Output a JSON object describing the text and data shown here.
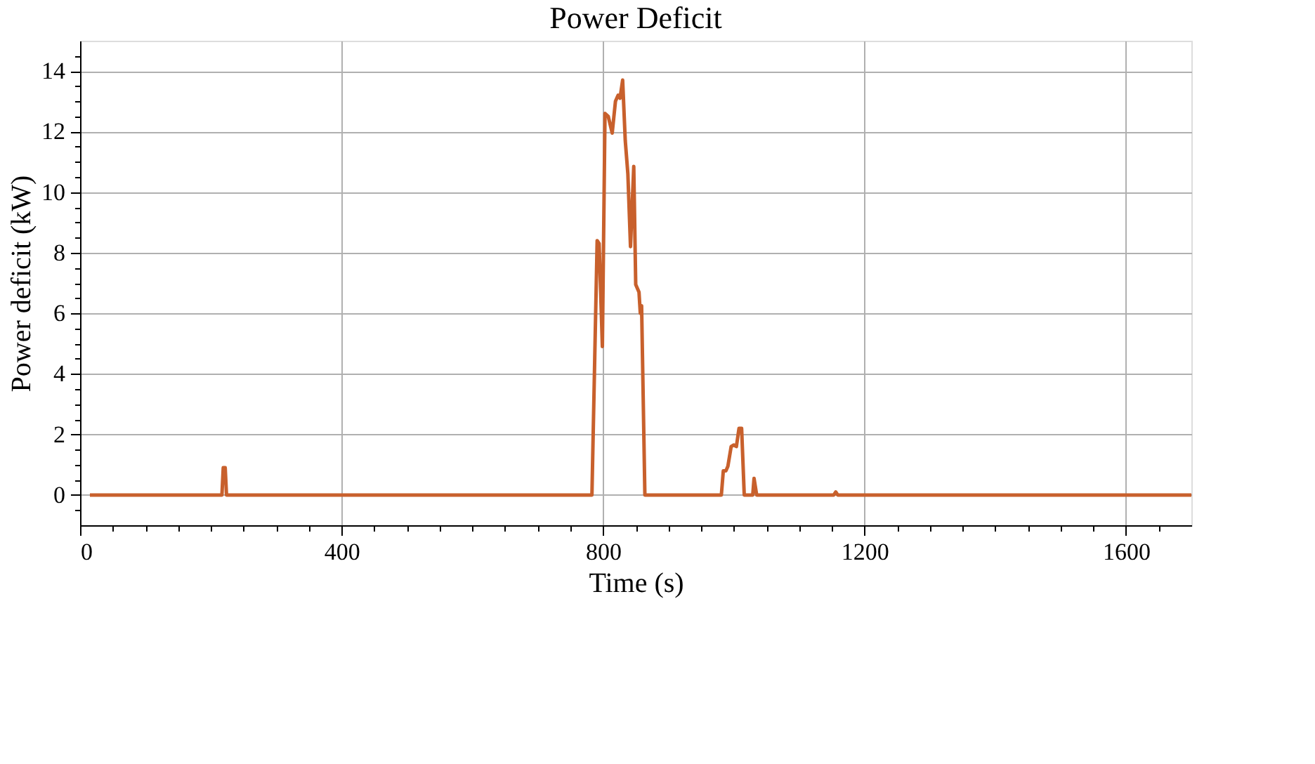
{
  "chart_data": {
    "type": "line",
    "title": "Power Deficit",
    "xlabel": "Time (s)",
    "ylabel": "Power deficit (kW)",
    "x": [
      15,
      217,
      219,
      222,
      224,
      783,
      791,
      794,
      799,
      803,
      808,
      814,
      819,
      823,
      826,
      830,
      834,
      838,
      842,
      847,
      850,
      855,
      857,
      859,
      864,
      981,
      984,
      988,
      991,
      996,
      1000,
      1004,
      1008,
      1012,
      1016,
      1029,
      1031,
      1035,
      1153,
      1156,
      1159,
      1700
    ],
    "series": [
      {
        "color": "#c8602c",
        "values": [
          0,
          0,
          0.9,
          0.9,
          0,
          0,
          8.4,
          8.3,
          4.9,
          12.6,
          12.5,
          11.95,
          13.0,
          13.2,
          13.1,
          13.7,
          11.7,
          10.6,
          8.2,
          10.85,
          6.95,
          6.7,
          6.0,
          6.25,
          0,
          0,
          0.8,
          0.8,
          0.95,
          1.6,
          1.65,
          1.6,
          2.2,
          2.2,
          0,
          0,
          0.55,
          0,
          0,
          0.1,
          0,
          0
        ]
      }
    ],
    "xlim": [
      0,
      1700
    ],
    "ylim": [
      -1,
      15
    ],
    "xticks": [
      0,
      {
        "value": 50,
        "label": null
      },
      {
        "value": 100,
        "label": null
      },
      {
        "value": 150,
        "label": null
      },
      {
        "value": 200,
        "label": null
      },
      {
        "value": 250,
        "label": null
      },
      {
        "value": 300,
        "label": null
      },
      {
        "value": 350,
        "label": null
      },
      400,
      {
        "value": 450,
        "label": null
      },
      {
        "value": 500,
        "label": null
      },
      {
        "value": 550,
        "label": null
      },
      {
        "value": 600,
        "label": null
      },
      {
        "value": 650,
        "label": null
      },
      {
        "value": 700,
        "label": null
      },
      {
        "value": 750,
        "label": null
      },
      800,
      {
        "value": 850,
        "label": null
      },
      {
        "value": 900,
        "label": null
      },
      {
        "value": 950,
        "label": null
      },
      {
        "value": 1000,
        "label": null
      },
      {
        "value": 1050,
        "label": null
      },
      {
        "value": 1100,
        "label": null
      },
      {
        "value": 1150,
        "label": null
      },
      1200,
      {
        "value": 1250,
        "label": null
      },
      {
        "value": 1300,
        "label": null
      },
      {
        "value": 1350,
        "label": null
      },
      {
        "value": 1400,
        "label": null
      },
      {
        "value": 1450,
        "label": null
      },
      {
        "value": 1500,
        "label": null
      },
      {
        "value": 1550,
        "label": null
      },
      1600,
      {
        "value": 1650,
        "label": null
      }
    ],
    "yticks": [
      {
        "value": -0.5,
        "label": null
      },
      0,
      {
        "value": 0.5,
        "label": null
      },
      {
        "value": 1,
        "label": null
      },
      {
        "value": 1.5,
        "label": null
      },
      2,
      {
        "value": 2.5,
        "label": null
      },
      {
        "value": 3,
        "label": null
      },
      {
        "value": 3.5,
        "label": null
      },
      4,
      {
        "value": 4.5,
        "label": null
      },
      {
        "value": 5,
        "label": null
      },
      {
        "value": 5.5,
        "label": null
      },
      6,
      {
        "value": 6.5,
        "label": null
      },
      {
        "value": 7,
        "label": null
      },
      {
        "value": 7.5,
        "label": null
      },
      8,
      {
        "value": 8.5,
        "label": null
      },
      {
        "value": 9,
        "label": null
      },
      {
        "value": 9.5,
        "label": null
      },
      10,
      {
        "value": 10.5,
        "label": null
      },
      {
        "value": 11,
        "label": null
      },
      {
        "value": 11.5,
        "label": null
      },
      12,
      {
        "value": 12.5,
        "label": null
      },
      {
        "value": 13,
        "label": null
      },
      {
        "value": 13.5,
        "label": null
      },
      14,
      {
        "value": 14.5,
        "label": null
      }
    ],
    "grid": true,
    "line_style": "solid"
  }
}
